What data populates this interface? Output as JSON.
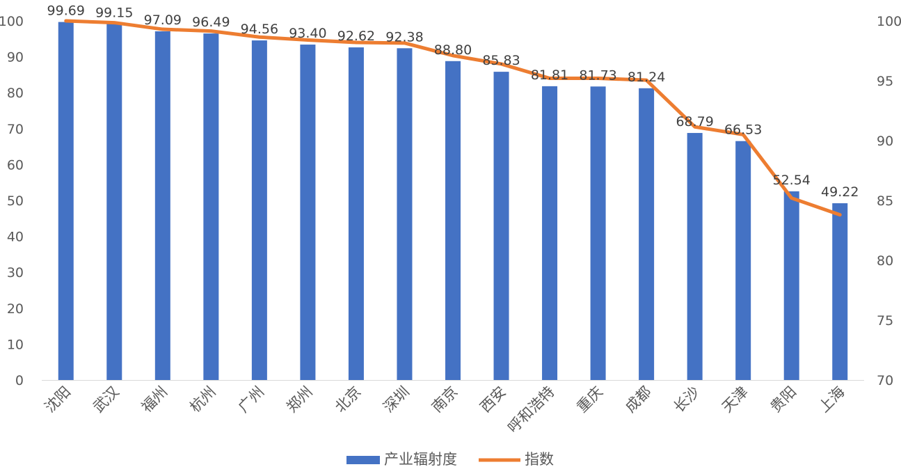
{
  "chart_data": {
    "type": "bar+line",
    "categories": [
      "沈阳",
      "武汉",
      "福州",
      "杭州",
      "广州",
      "郑州",
      "北京",
      "深圳",
      "南京",
      "西安",
      "呼和浩特",
      "重庆",
      "成都",
      "长沙",
      "天津",
      "贵阳",
      "上海"
    ],
    "series": [
      {
        "name": "产业辐射度",
        "type": "bar",
        "axis": "left",
        "color": "#4472C4",
        "values": [
          99.69,
          99.15,
          97.09,
          96.49,
          94.56,
          93.4,
          92.62,
          92.38,
          88.8,
          85.83,
          81.81,
          81.73,
          81.24,
          68.79,
          66.53,
          52.54,
          49.22
        ],
        "labels": [
          "99.69",
          "99.15",
          "97.09",
          "96.49",
          "94.56",
          "93.40",
          "92.62",
          "92.38",
          "88.80",
          "85.83",
          "81.81",
          "81.73",
          "81.24",
          "68.79",
          "66.53",
          "52.54",
          "49.22"
        ]
      },
      {
        "name": "指数",
        "type": "line",
        "axis": "right",
        "color": "#ED7D31",
        "values": [
          100.0,
          99.85,
          99.3,
          99.15,
          98.65,
          98.4,
          98.2,
          98.15,
          97.1,
          96.4,
          95.2,
          95.2,
          95.05,
          91.15,
          90.5,
          85.2,
          83.8
        ]
      }
    ],
    "y_left": {
      "min": 0,
      "max": 100,
      "ticks": [
        "0",
        "10",
        "20",
        "30",
        "40",
        "50",
        "60",
        "70",
        "80",
        "90",
        "100"
      ]
    },
    "y_right": {
      "min": 70,
      "max": 100,
      "ticks": [
        "70",
        "75",
        "80",
        "85",
        "90",
        "95",
        "100"
      ]
    },
    "legend_position": "bottom",
    "grid": false
  }
}
